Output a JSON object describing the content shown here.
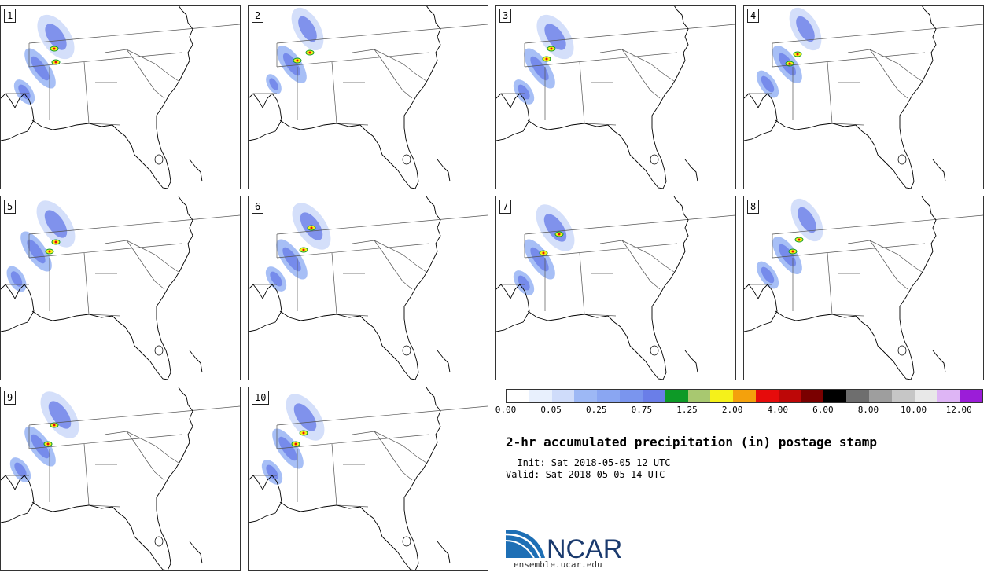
{
  "panels": [
    {
      "number": "1"
    },
    {
      "number": "2"
    },
    {
      "number": "3"
    },
    {
      "number": "4"
    },
    {
      "number": "5"
    },
    {
      "number": "6"
    },
    {
      "number": "7"
    },
    {
      "number": "8"
    },
    {
      "number": "9"
    },
    {
      "number": "10"
    }
  ],
  "colorbar": {
    "colors": [
      "#ffffff",
      "#e8f0fd",
      "#cfdcfa",
      "#9db8f5",
      "#8aa6f2",
      "#7a95ee",
      "#6a7ee8",
      "#0d9a27",
      "#a8c870",
      "#f5f11a",
      "#f4a10c",
      "#e60b0b",
      "#bd0707",
      "#7a0000",
      "#000000",
      "#6e6e6e",
      "#9e9e9e",
      "#c6c6c6",
      "#e8e8e8",
      "#deb5f5",
      "#9b1dd8"
    ],
    "labels": [
      "0.00",
      "0.05",
      "0.25",
      "0.75",
      "1.25",
      "2.00",
      "4.00",
      "6.00",
      "8.00",
      "10.00",
      "12.00"
    ]
  },
  "title": "2-hr accumulated precipitation (in) postage stamp",
  "init": "  Init: Sat 2018-05-05 12 UTC",
  "valid": "Valid: Sat 2018-05-05 14 UTC",
  "logo": {
    "text": "NCAR",
    "url": "ensemble.ucar.edu",
    "colors": {
      "blue": "#1e6fb5",
      "text": "#1a3a6e"
    }
  }
}
